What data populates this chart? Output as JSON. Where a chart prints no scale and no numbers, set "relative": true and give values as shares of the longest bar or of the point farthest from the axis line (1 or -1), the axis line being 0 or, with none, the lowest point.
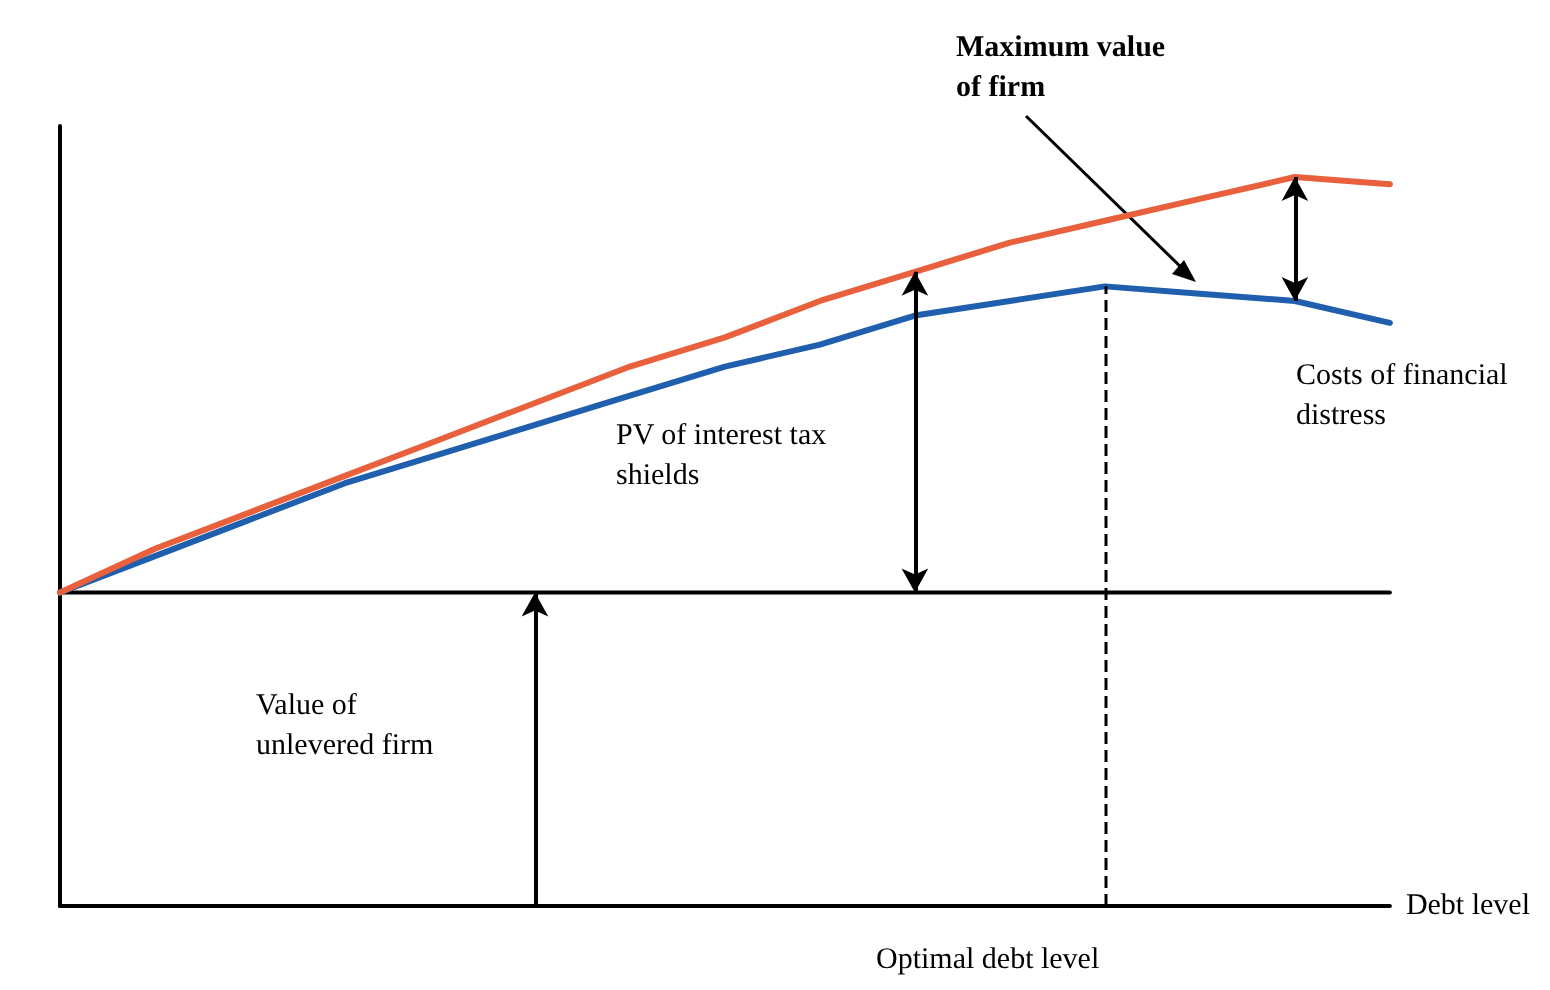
{
  "chart_data": {
    "type": "line",
    "relative": true,
    "xlabel": "Debt level",
    "categories": [
      null,
      null,
      null,
      null,
      null,
      null,
      null,
      null,
      null,
      null,
      null,
      null,
      null,
      null,
      null
    ],
    "series": [
      {
        "color": "#e8603c",
        "values": [
          0.43,
          0.49,
          0.54,
          0.59,
          0.64,
          0.69,
          0.74,
          0.78,
          0.83,
          0.87,
          0.91,
          0.94,
          0.97,
          1.0,
          0.99
        ]
      },
      {
        "color": "#1f5fad",
        "values": [
          0.43,
          0.48,
          0.53,
          0.58,
          0.62,
          0.66,
          0.7,
          0.74,
          0.77,
          0.81,
          0.83,
          0.85,
          0.84,
          0.83,
          0.8
        ]
      },
      {
        "color": "#000000",
        "values": [
          0.43,
          0.43,
          0.43,
          0.43,
          0.43,
          0.43,
          0.43,
          0.43,
          0.43,
          0.43,
          0.43,
          0.43,
          0.43,
          0.43,
          0.43
        ]
      }
    ],
    "annotations": [
      "Maximum value of firm",
      "PV of interest tax shields",
      "Value of unlevered firm",
      "Costs of financial distress",
      "Optimal debt level"
    ],
    "grid": false,
    "marker": "none",
    "line_style": "solid"
  }
}
